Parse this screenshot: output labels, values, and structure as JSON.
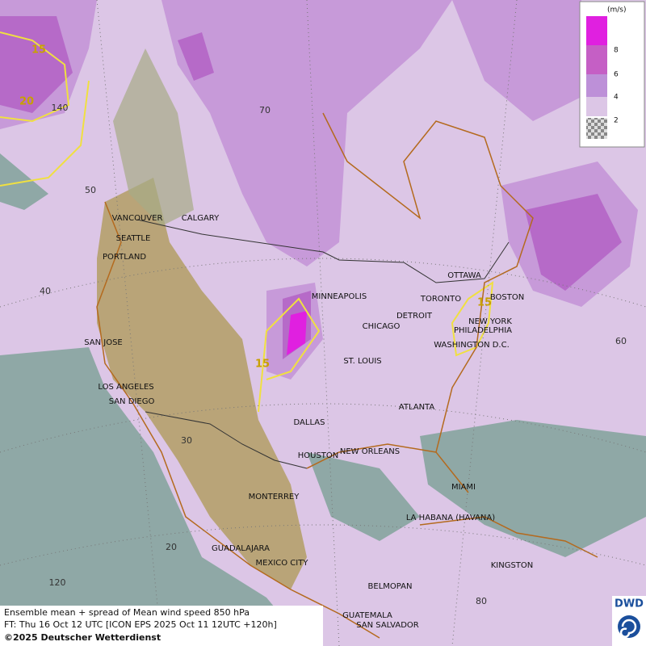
{
  "legend": {
    "unit": "(m/s)",
    "levels": [
      8,
      6,
      4,
      2
    ]
  },
  "cities": [
    "VANCOUVER",
    "CALGARY",
    "SEATTLE",
    "PORTLAND",
    "MINNEAPOLIS",
    "OTTAWA",
    "TORONTO",
    "BOSTON",
    "DETROIT",
    "CHICAGO",
    "NEW YORK",
    "PHILADELPHIA",
    "WASHINGTON D.C.",
    "SAN JOSE",
    "ST. LOUIS",
    "LOS ANGELES",
    "SAN DIEGO",
    "ATLANTA",
    "DALLAS",
    "HOUSTON",
    "NEW ORLEANS",
    "MIAMI",
    "MONTERREY",
    "LA HABANA (HAVANA)",
    "GUADALAJARA",
    "MEXICO CITY",
    "KINGSTON",
    "BELMOPAN",
    "GUATEMALA",
    "SAN SALVADOR"
  ],
  "grid_labels": [
    "70",
    "140",
    "50",
    "40",
    "30",
    "20",
    "120",
    "60",
    "80"
  ],
  "contour_labels": [
    "15",
    "20",
    "15",
    "15"
  ],
  "footer": {
    "line1": "Ensemble mean + spread of Mean wind speed 850 hPa",
    "line2": "FT: Thu 16 Oct 12 UTC [ICON EPS 2025 Oct 11 12UTC +120h]",
    "line3": "©2025 Deutscher Wetterdienst"
  },
  "logo": "DWD"
}
